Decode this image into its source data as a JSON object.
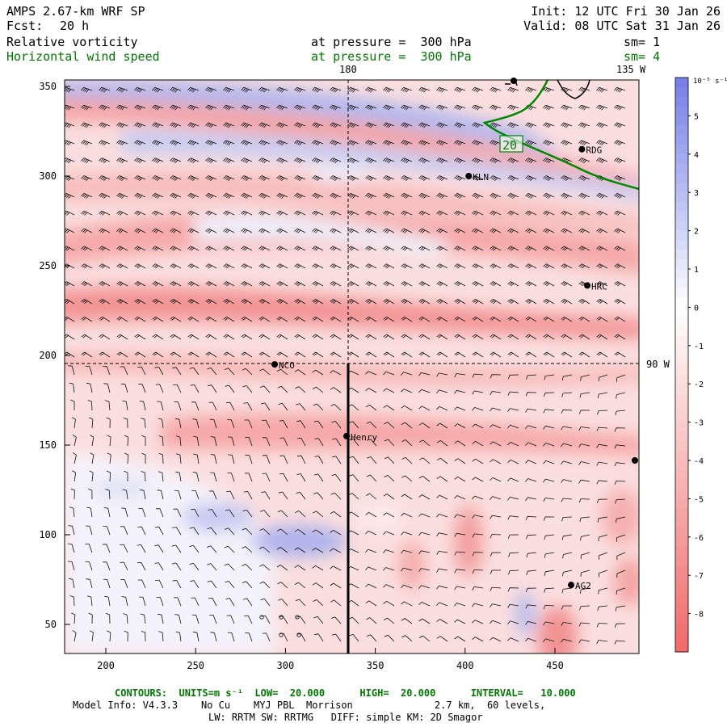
{
  "header": {
    "model": "AMPS 2.67-km WRF SP",
    "fcst_label": "Fcst:",
    "fcst_value": "20 h",
    "init": "Init: 12 UTC Fri 30 Jan 26",
    "valid": "Valid: 08 UTC Sat 31 Jan 26",
    "field1": "Relative vorticity",
    "field1_level": "at pressure =  300 hPa",
    "field1_sm": "sm= 1",
    "field2": "Horizontal wind speed",
    "field2_level": "at pressure =  300 hPa",
    "field2_sm": "sm= 4"
  },
  "map": {
    "lon_labels": [
      "180",
      "135 W",
      "90 W"
    ],
    "x_ticks": [
      "200",
      "250",
      "300",
      "350",
      "400",
      "450"
    ],
    "y_ticks": [
      "350",
      "300",
      "250",
      "200",
      "150",
      "100",
      "50"
    ],
    "contour_label": "20",
    "stations": [
      {
        "name": "RDG",
        "x": 465,
        "y": 315
      },
      {
        "name": "KLN",
        "x": 402,
        "y": 300
      },
      {
        "name": "HRC",
        "x": 468,
        "y": 239
      },
      {
        "name": "NCO",
        "x": 294,
        "y": 195
      },
      {
        "name": "Henry",
        "x": 334,
        "y": 155
      },
      {
        "name": "AG2",
        "x": 459,
        "y": 72
      }
    ],
    "colors": {
      "positive": "#f06060",
      "negative": "#6f79e0",
      "contour": "#008800"
    }
  },
  "colorbar": {
    "unit": "10⁻⁵ s⁻¹",
    "labels": [
      "5",
      "4",
      "3",
      "2",
      "1",
      "0",
      "-1",
      "-2",
      "-3",
      "-4",
      "-5",
      "-6",
      "-7",
      "-8"
    ]
  },
  "footer": {
    "contours": "CONTOURS:  UNITS=m s⁻¹  LOW=  20.000      HIGH=  20.000      INTERVAL=   10.000",
    "info1": "Model Info: V4.3.3    No Cu    MYJ PBL  Morrison              2.7 km,  60 levels,",
    "info2": "LW: RRTM SW: RRTMG   DIFF: simple KM: 2D Smagor"
  }
}
